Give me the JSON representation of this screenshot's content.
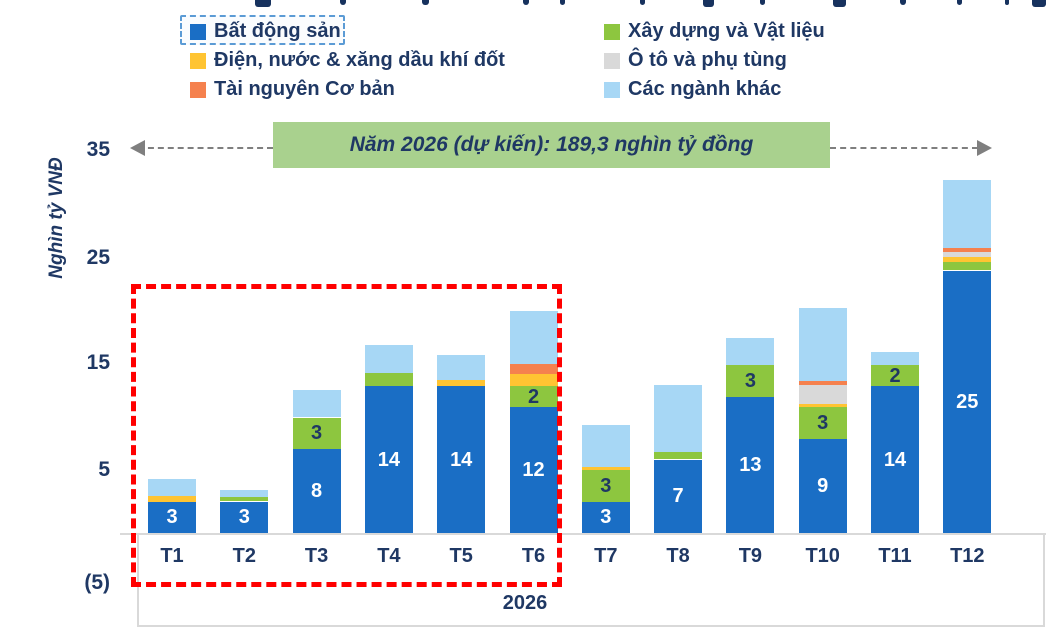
{
  "legend": {
    "columns": [
      {
        "items": [
          {
            "label": "Bất động sản",
            "color": "#1A6EC5",
            "selected": true
          },
          {
            "label": "Điện, nước & xăng dầu khí đốt",
            "color": "#FFC432",
            "selected": false
          },
          {
            "label": "Tài nguyên Cơ bản",
            "color": "#F5814E",
            "selected": false
          }
        ]
      },
      {
        "items": [
          {
            "label": "Xây dựng và Vật liệu",
            "color": "#8DC63F",
            "selected": false
          },
          {
            "label": "Ô tô và phụ tùng",
            "color": "#D9D9D9",
            "selected": false
          },
          {
            "label": "Các ngành khác",
            "color": "#A7D7F5",
            "selected": false
          }
        ]
      }
    ]
  },
  "banner": {
    "text": "Năm 2026 (dự kiến): 189,3 nghìn tỷ đồng",
    "bg_color": "#A9D18E",
    "text_color": "#1F3864"
  },
  "chart_data": {
    "type": "bar",
    "stacked": true,
    "ylabel": "Nghìn tỷ VNĐ",
    "ylim": [
      -5,
      35
    ],
    "grid": false,
    "yticks": [
      {
        "label": "35",
        "value": 35
      },
      {
        "label": "25",
        "value": 25
      },
      {
        "label": "15",
        "value": 15
      },
      {
        "label": "5",
        "value": 5
      },
      {
        "label": "(5)",
        "value": -5
      }
    ],
    "categories": [
      "T1",
      "T2",
      "T3",
      "T4",
      "T5",
      "T6",
      "T7",
      "T8",
      "T9",
      "T10",
      "T11",
      "T12"
    ],
    "group_label": "2026",
    "highlighted_range": "T1–T6",
    "series": [
      {
        "name": "Bất động sản",
        "color": "#1A6EC5",
        "label_color": "#FFFFFF",
        "values": [
          3,
          3,
          8,
          14,
          14,
          12,
          3,
          7,
          13,
          9,
          14,
          25
        ],
        "labels": [
          "3",
          "3",
          "8",
          "14",
          "14",
          "12",
          "3",
          "7",
          "13",
          "9",
          "14",
          "25"
        ]
      },
      {
        "name": "Xây dựng và Vật liệu",
        "color": "#8DC63F",
        "label_color": "#1F3864",
        "values": [
          0,
          0.4,
          3,
          1.2,
          0,
          2,
          3,
          0.7,
          3,
          3,
          2,
          0.8
        ],
        "labels": [
          "",
          "",
          "3",
          "",
          "",
          "2",
          "3",
          "",
          "3",
          "3",
          "2",
          ""
        ]
      },
      {
        "name": "Điện, nước & xăng dầu khí đốt",
        "color": "#FFC432",
        "label_color": "#1F3864",
        "values": [
          0.5,
          0,
          0,
          0,
          0.6,
          1.1,
          0.3,
          0,
          0,
          0.3,
          0,
          0.5
        ],
        "labels": [
          "",
          "",
          "",
          "",
          "",
          "",
          "",
          "",
          "",
          "",
          "",
          ""
        ]
      },
      {
        "name": "Ô tô và phụ tùng",
        "color": "#D9D9D9",
        "label_color": "#1F3864",
        "values": [
          0,
          0,
          0,
          0,
          0,
          0,
          0,
          0,
          0,
          1.8,
          0,
          0.5
        ],
        "labels": [
          "",
          "",
          "",
          "",
          "",
          "",
          "",
          "",
          "",
          "",
          "",
          ""
        ]
      },
      {
        "name": "Tài nguyên Cơ bản",
        "color": "#F5814E",
        "label_color": "#1F3864",
        "values": [
          0,
          0,
          0,
          0,
          0,
          1,
          0,
          0,
          0,
          0.4,
          0,
          0.3
        ],
        "labels": [
          "",
          "",
          "",
          "",
          "",
          "",
          "",
          "",
          "",
          "",
          "",
          ""
        ]
      },
      {
        "name": "Các ngành khác",
        "color": "#A7D7F5",
        "label_color": "#1F3864",
        "values": [
          1.6,
          0.7,
          2.6,
          2.7,
          2.4,
          5,
          4,
          6.4,
          2.6,
          6.9,
          1.2,
          6.5
        ],
        "labels": [
          "",
          "",
          "",
          "",
          "",
          "",
          "",
          "",
          "",
          "",
          "",
          ""
        ]
      }
    ]
  }
}
